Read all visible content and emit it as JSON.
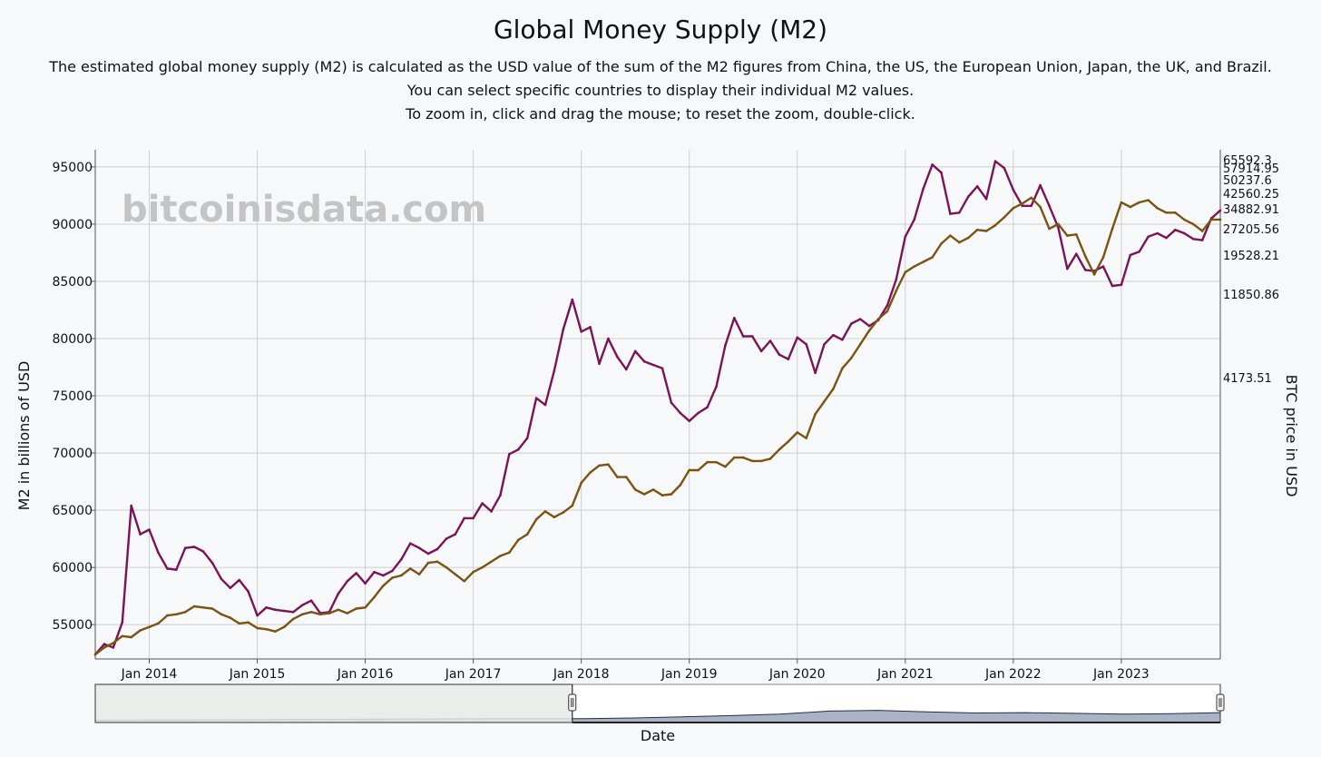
{
  "page": {
    "title": "Global Money Supply (M2)",
    "subtitle_lines": [
      "The estimated global money supply (M2) is calculated as the USD value of the sum of the M2 figures from China, the US, the European Union, Japan, the UK, and Brazil.",
      "You can select specific countries to display their individual M2 values.",
      "To zoom in, click and drag the mouse; to reset the zoom, double-click."
    ],
    "watermark": "bitcoinisdata.com"
  },
  "colors": {
    "m2_line": "#7a1457",
    "btc_line": "#7a5410",
    "grid": "#cfcfcf",
    "navigator_fill": "#aab3c6",
    "navigator_line": "#22304a",
    "navigator_mask": "#e8eae8"
  },
  "chart_data": {
    "type": "line",
    "xlabel": "Date",
    "ylabel": "M2 in billions of USD",
    "y2label": "BTC price in USD",
    "x_range": [
      "2013-07",
      "2023-12"
    ],
    "ylim": [
      52000,
      96500
    ],
    "x_ticks": [
      {
        "date": "2014-01",
        "label": "Jan 2014"
      },
      {
        "date": "2015-01",
        "label": "Jan 2015"
      },
      {
        "date": "2016-01",
        "label": "Jan 2016"
      },
      {
        "date": "2017-01",
        "label": "Jan 2017"
      },
      {
        "date": "2018-01",
        "label": "Jan 2018"
      },
      {
        "date": "2019-01",
        "label": "Jan 2019"
      },
      {
        "date": "2020-01",
        "label": "Jan 2020"
      },
      {
        "date": "2021-01",
        "label": "Jan 2021"
      },
      {
        "date": "2022-01",
        "label": "Jan 2022"
      },
      {
        "date": "2023-01",
        "label": "Jan 2023"
      }
    ],
    "y_ticks": [
      55000,
      60000,
      65000,
      70000,
      75000,
      80000,
      85000,
      90000,
      95000
    ],
    "y2_ticks": [
      "65592.3",
      "57914.95",
      "50237.6",
      "42560.25",
      "34882.91",
      "27205.56",
      "19528.21",
      "11850.86",
      "4173.51"
    ],
    "grid": true,
    "series": [
      {
        "id": "m2",
        "points": [
          [
            "2013-07",
            52400
          ],
          [
            "2013-08",
            53300
          ],
          [
            "2013-09",
            53000
          ],
          [
            "2013-10",
            55200
          ],
          [
            "2013-11",
            65400
          ],
          [
            "2013-12",
            62900
          ],
          [
            "2014-01",
            63300
          ],
          [
            "2014-02",
            61300
          ],
          [
            "2014-03",
            59900
          ],
          [
            "2014-04",
            59800
          ],
          [
            "2014-05",
            61700
          ],
          [
            "2014-06",
            61800
          ],
          [
            "2014-07",
            61400
          ],
          [
            "2014-08",
            60400
          ],
          [
            "2014-09",
            59000
          ],
          [
            "2014-10",
            58200
          ],
          [
            "2014-11",
            58900
          ],
          [
            "2014-12",
            57900
          ],
          [
            "2015-01",
            55800
          ],
          [
            "2015-02",
            56500
          ],
          [
            "2015-03",
            56300
          ],
          [
            "2015-04",
            56200
          ],
          [
            "2015-05",
            56100
          ],
          [
            "2015-06",
            56700
          ],
          [
            "2015-07",
            57100
          ],
          [
            "2015-08",
            56000
          ],
          [
            "2015-09",
            56100
          ],
          [
            "2015-10",
            57700
          ],
          [
            "2015-11",
            58800
          ],
          [
            "2015-12",
            59500
          ],
          [
            "2016-01",
            58600
          ],
          [
            "2016-02",
            59600
          ],
          [
            "2016-03",
            59300
          ],
          [
            "2016-04",
            59700
          ],
          [
            "2016-05",
            60700
          ],
          [
            "2016-06",
            62100
          ],
          [
            "2016-07",
            61700
          ],
          [
            "2016-08",
            61200
          ],
          [
            "2016-09",
            61600
          ],
          [
            "2016-10",
            62500
          ],
          [
            "2016-11",
            62900
          ],
          [
            "2016-12",
            64300
          ],
          [
            "2017-01",
            64300
          ],
          [
            "2017-02",
            65600
          ],
          [
            "2017-03",
            64900
          ],
          [
            "2017-04",
            66300
          ],
          [
            "2017-05",
            69900
          ],
          [
            "2017-06",
            70300
          ],
          [
            "2017-07",
            71300
          ],
          [
            "2017-08",
            74800
          ],
          [
            "2017-09",
            74200
          ],
          [
            "2017-10",
            77200
          ],
          [
            "2017-11",
            80800
          ],
          [
            "2017-12",
            83400
          ],
          [
            "2018-01",
            80600
          ],
          [
            "2018-02",
            81000
          ],
          [
            "2018-03",
            77800
          ],
          [
            "2018-04",
            80000
          ],
          [
            "2018-05",
            78400
          ],
          [
            "2018-06",
            77300
          ],
          [
            "2018-07",
            78900
          ],
          [
            "2018-08",
            78000
          ],
          [
            "2018-09",
            77700
          ],
          [
            "2018-10",
            77400
          ],
          [
            "2018-11",
            74400
          ],
          [
            "2018-12",
            73500
          ],
          [
            "2019-01",
            72800
          ],
          [
            "2019-02",
            73500
          ],
          [
            "2019-03",
            74000
          ],
          [
            "2019-04",
            75800
          ],
          [
            "2019-05",
            79400
          ],
          [
            "2019-06",
            81800
          ],
          [
            "2019-07",
            80200
          ],
          [
            "2019-08",
            80200
          ],
          [
            "2019-09",
            78900
          ],
          [
            "2019-10",
            79800
          ],
          [
            "2019-11",
            78600
          ],
          [
            "2019-12",
            78200
          ],
          [
            "2020-01",
            80100
          ],
          [
            "2020-02",
            79500
          ],
          [
            "2020-03",
            77000
          ],
          [
            "2020-04",
            79500
          ],
          [
            "2020-05",
            80300
          ],
          [
            "2020-06",
            79900
          ],
          [
            "2020-07",
            81300
          ],
          [
            "2020-08",
            81700
          ],
          [
            "2020-09",
            81100
          ],
          [
            "2020-10",
            81600
          ],
          [
            "2020-11",
            82900
          ],
          [
            "2020-12",
            85200
          ],
          [
            "2021-01",
            88900
          ],
          [
            "2021-02",
            90400
          ],
          [
            "2021-03",
            93100
          ],
          [
            "2021-04",
            95200
          ],
          [
            "2021-05",
            94500
          ],
          [
            "2021-06",
            90900
          ],
          [
            "2021-07",
            91000
          ],
          [
            "2021-08",
            92400
          ],
          [
            "2021-09",
            93300
          ],
          [
            "2021-10",
            92200
          ],
          [
            "2021-11",
            95500
          ],
          [
            "2021-12",
            94900
          ],
          [
            "2022-01",
            93000
          ],
          [
            "2022-02",
            91600
          ],
          [
            "2022-03",
            91600
          ],
          [
            "2022-04",
            93400
          ],
          [
            "2022-05",
            91600
          ],
          [
            "2022-06",
            89700
          ],
          [
            "2022-07",
            86100
          ],
          [
            "2022-08",
            87400
          ],
          [
            "2022-09",
            86000
          ],
          [
            "2022-10",
            85900
          ],
          [
            "2022-11",
            86300
          ],
          [
            "2022-12",
            84600
          ],
          [
            "2023-01",
            84700
          ],
          [
            "2023-02",
            87300
          ],
          [
            "2023-03",
            87600
          ],
          [
            "2023-04",
            88900
          ],
          [
            "2023-05",
            89200
          ],
          [
            "2023-06",
            88800
          ],
          [
            "2023-07",
            89500
          ],
          [
            "2023-08",
            89200
          ],
          [
            "2023-09",
            88700
          ],
          [
            "2023-10",
            88600
          ],
          [
            "2023-11",
            90500
          ],
          [
            "2023-12",
            91200
          ]
        ]
      },
      {
        "id": "btc",
        "points": [
          [
            "2013-07",
            52400
          ],
          [
            "2013-08",
            53000
          ],
          [
            "2013-09",
            53400
          ],
          [
            "2013-10",
            54000
          ],
          [
            "2013-11",
            53900
          ],
          [
            "2013-12",
            54500
          ],
          [
            "2014-01",
            54800
          ],
          [
            "2014-02",
            55100
          ],
          [
            "2014-03",
            55800
          ],
          [
            "2014-04",
            55900
          ],
          [
            "2014-05",
            56100
          ],
          [
            "2014-06",
            56600
          ],
          [
            "2014-07",
            56500
          ],
          [
            "2014-08",
            56400
          ],
          [
            "2014-09",
            55900
          ],
          [
            "2014-10",
            55600
          ],
          [
            "2014-11",
            55100
          ],
          [
            "2014-12",
            55200
          ],
          [
            "2015-01",
            54700
          ],
          [
            "2015-02",
            54600
          ],
          [
            "2015-03",
            54400
          ],
          [
            "2015-04",
            54800
          ],
          [
            "2015-05",
            55500
          ],
          [
            "2015-06",
            55900
          ],
          [
            "2015-07",
            56100
          ],
          [
            "2015-08",
            55900
          ],
          [
            "2015-09",
            56000
          ],
          [
            "2015-10",
            56300
          ],
          [
            "2015-11",
            56000
          ],
          [
            "2015-12",
            56400
          ],
          [
            "2016-01",
            56500
          ],
          [
            "2016-02",
            57400
          ],
          [
            "2016-03",
            58400
          ],
          [
            "2016-04",
            59100
          ],
          [
            "2016-05",
            59300
          ],
          [
            "2016-06",
            59900
          ],
          [
            "2016-07",
            59400
          ],
          [
            "2016-08",
            60400
          ],
          [
            "2016-09",
            60500
          ],
          [
            "2016-10",
            60000
          ],
          [
            "2016-11",
            59400
          ],
          [
            "2016-12",
            58800
          ],
          [
            "2017-01",
            59600
          ],
          [
            "2017-02",
            60000
          ],
          [
            "2017-03",
            60500
          ],
          [
            "2017-04",
            61000
          ],
          [
            "2017-05",
            61300
          ],
          [
            "2017-06",
            62400
          ],
          [
            "2017-07",
            62900
          ],
          [
            "2017-08",
            64200
          ],
          [
            "2017-09",
            64900
          ],
          [
            "2017-10",
            64400
          ],
          [
            "2017-11",
            64800
          ],
          [
            "2017-12",
            65400
          ],
          [
            "2018-01",
            67400
          ],
          [
            "2018-02",
            68300
          ],
          [
            "2018-03",
            68900
          ],
          [
            "2018-04",
            69000
          ],
          [
            "2018-05",
            67900
          ],
          [
            "2018-06",
            67900
          ],
          [
            "2018-07",
            66800
          ],
          [
            "2018-08",
            66400
          ],
          [
            "2018-09",
            66800
          ],
          [
            "2018-10",
            66300
          ],
          [
            "2018-11",
            66400
          ],
          [
            "2018-12",
            67200
          ],
          [
            "2019-01",
            68500
          ],
          [
            "2019-02",
            68500
          ],
          [
            "2019-03",
            69200
          ],
          [
            "2019-04",
            69200
          ],
          [
            "2019-05",
            68800
          ],
          [
            "2019-06",
            69600
          ],
          [
            "2019-07",
            69600
          ],
          [
            "2019-08",
            69300
          ],
          [
            "2019-09",
            69300
          ],
          [
            "2019-10",
            69500
          ],
          [
            "2019-11",
            70300
          ],
          [
            "2019-12",
            71000
          ],
          [
            "2020-01",
            71800
          ],
          [
            "2020-02",
            71300
          ],
          [
            "2020-03",
            73400
          ],
          [
            "2020-04",
            74500
          ],
          [
            "2020-05",
            75600
          ],
          [
            "2020-06",
            77400
          ],
          [
            "2020-07",
            78300
          ],
          [
            "2020-08",
            79500
          ],
          [
            "2020-09",
            80700
          ],
          [
            "2020-10",
            81700
          ],
          [
            "2020-11",
            82400
          ],
          [
            "2020-12",
            84200
          ],
          [
            "2021-01",
            85800
          ],
          [
            "2021-02",
            86300
          ],
          [
            "2021-03",
            86700
          ],
          [
            "2021-04",
            87100
          ],
          [
            "2021-05",
            88300
          ],
          [
            "2021-06",
            89000
          ],
          [
            "2021-07",
            88400
          ],
          [
            "2021-08",
            88800
          ],
          [
            "2021-09",
            89500
          ],
          [
            "2021-10",
            89400
          ],
          [
            "2021-11",
            89900
          ],
          [
            "2021-12",
            90600
          ],
          [
            "2022-01",
            91400
          ],
          [
            "2022-02",
            91800
          ],
          [
            "2022-03",
            92300
          ],
          [
            "2022-04",
            91500
          ],
          [
            "2022-05",
            89600
          ],
          [
            "2022-06",
            90000
          ],
          [
            "2022-07",
            89000
          ],
          [
            "2022-08",
            89100
          ],
          [
            "2022-09",
            87200
          ],
          [
            "2022-10",
            85600
          ],
          [
            "2022-11",
            87100
          ],
          [
            "2022-12",
            89600
          ],
          [
            "2023-01",
            91900
          ],
          [
            "2023-02",
            91500
          ],
          [
            "2023-03",
            91900
          ],
          [
            "2023-04",
            92100
          ],
          [
            "2023-05",
            91400
          ],
          [
            "2023-06",
            91000
          ],
          [
            "2023-07",
            91000
          ],
          [
            "2023-08",
            90400
          ],
          [
            "2023-09",
            90000
          ],
          [
            "2023-10",
            89400
          ],
          [
            "2023-11",
            90400
          ],
          [
            "2023-12",
            90400
          ]
        ]
      }
    ],
    "navigator_profile": [
      0.06,
      0.065,
      0.07,
      0.075,
      0.08,
      0.085,
      0.09,
      0.095,
      0.1,
      0.1,
      0.1,
      0.12,
      0.15,
      0.18,
      0.22,
      0.3,
      0.32,
      0.28,
      0.25,
      0.26,
      0.24,
      0.22,
      0.23,
      0.26
    ],
    "navigator_range": {
      "start": "2017-12",
      "end": "2023-12"
    }
  }
}
